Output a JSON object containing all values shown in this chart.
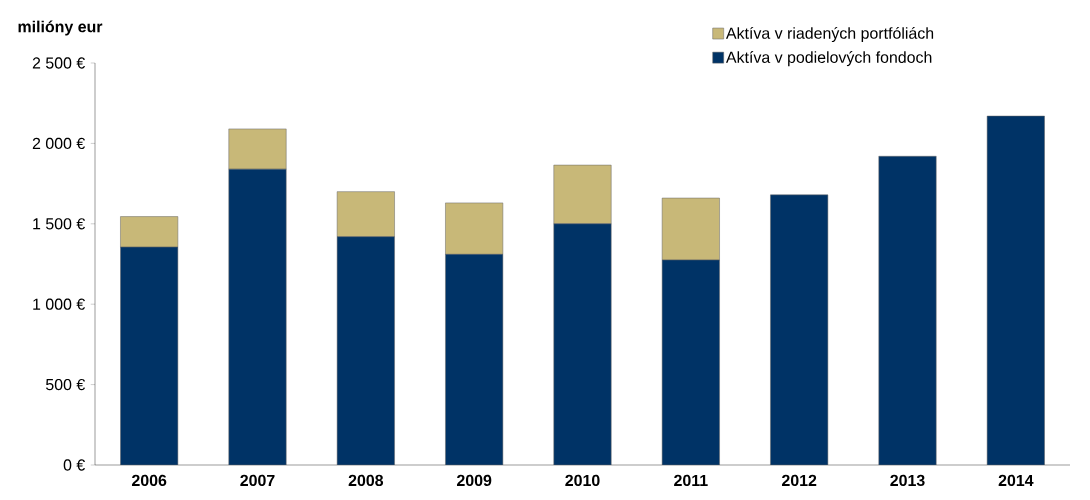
{
  "chart_data": {
    "type": "bar",
    "stacked": true,
    "ylabel": "milióny eur",
    "categories": [
      "2006",
      "2007",
      "2008",
      "2009",
      "2010",
      "2011",
      "2012",
      "2013",
      "2014"
    ],
    "series": [
      {
        "name": "Aktíva v podielových fondoch",
        "color": "#003366",
        "values": [
          1355,
          1840,
          1420,
          1310,
          1500,
          1275,
          1680,
          1920,
          2170
        ]
      },
      {
        "name": "Aktíva v riadených portfóliách",
        "color": "#c8b878",
        "values": [
          190,
          250,
          280,
          320,
          365,
          385,
          null,
          null,
          null
        ]
      }
    ],
    "ylim": [
      0,
      2500
    ],
    "yticks": [
      {
        "value": 0,
        "label": "0 €"
      },
      {
        "value": 500,
        "label": "500 €"
      },
      {
        "value": 1000,
        "label": "1 000 €"
      },
      {
        "value": 1500,
        "label": "1 500 €"
      },
      {
        "value": 2000,
        "label": "2 000 €"
      },
      {
        "value": 2500,
        "label": "2 500 €"
      }
    ],
    "grid": false,
    "legend": "top right"
  }
}
